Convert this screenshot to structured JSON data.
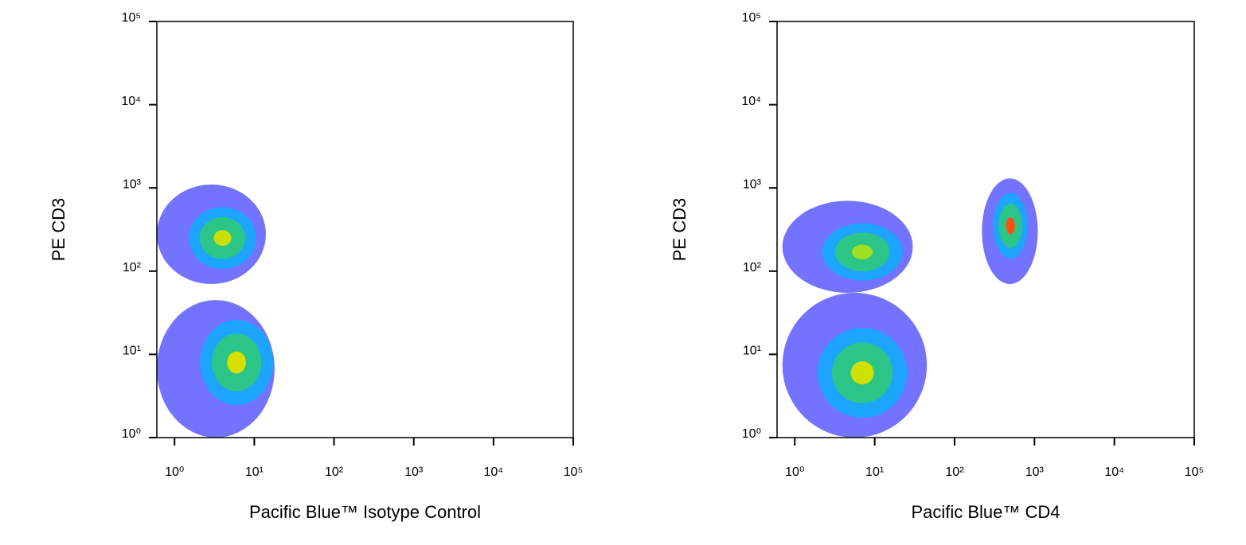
{
  "chart_data": [
    {
      "type": "density",
      "x_label": "Pacific Blue™ Isotype Control",
      "y_label": "PE CD3",
      "x_scale": "log",
      "y_scale": "log",
      "xlim": [
        0.6,
        100000
      ],
      "ylim": [
        1,
        100000
      ],
      "xticks": [
        {
          "value": 1,
          "label": "10⁰"
        },
        {
          "value": 10,
          "label": "10¹"
        },
        {
          "value": 100,
          "label": "10²"
        },
        {
          "value": 1000,
          "label": "10³"
        },
        {
          "value": 10000,
          "label": "10⁴"
        },
        {
          "value": 100000,
          "label": "10⁵"
        }
      ],
      "yticks": [
        {
          "value": 1,
          "label": "10⁰"
        },
        {
          "value": 10,
          "label": "10¹"
        },
        {
          "value": 100,
          "label": "10²"
        },
        {
          "value": 1000,
          "label": "10³"
        },
        {
          "value": 10000,
          "label": "10⁴"
        },
        {
          "value": 100000,
          "label": "10⁵"
        }
      ],
      "density_colors": [
        "#0000ff",
        "#00b4ff",
        "#30d060"
      ],
      "clusters": [
        {
          "x": 4,
          "y": 250,
          "x_range": [
            0.6,
            14
          ],
          "y_range": [
            70,
            1100
          ],
          "peak_color": "#c8e000"
        },
        {
          "x": 6,
          "y": 8,
          "x_range": [
            0.6,
            18
          ],
          "y_range": [
            1,
            45
          ],
          "peak_color": "#d8e000"
        }
      ]
    },
    {
      "type": "density",
      "x_label": "Pacific Blue™ CD4",
      "y_label": "PE CD3",
      "x_scale": "log",
      "y_scale": "log",
      "xlim": [
        0.6,
        100000
      ],
      "ylim": [
        1,
        100000
      ],
      "xticks": [
        {
          "value": 1,
          "label": "10⁰"
        },
        {
          "value": 10,
          "label": "10¹"
        },
        {
          "value": 100,
          "label": "10²"
        },
        {
          "value": 1000,
          "label": "10³"
        },
        {
          "value": 10000,
          "label": "10⁴"
        },
        {
          "value": 100000,
          "label": "10⁵"
        }
      ],
      "yticks": [
        {
          "value": 1,
          "label": "10⁰"
        },
        {
          "value": 10,
          "label": "10¹"
        },
        {
          "value": 100,
          "label": "10²"
        },
        {
          "value": 1000,
          "label": "10³"
        },
        {
          "value": 10000,
          "label": "10⁴"
        },
        {
          "value": 100000,
          "label": "10⁵"
        }
      ],
      "density_colors": [
        "#0000ff",
        "#00b4ff",
        "#30d060"
      ],
      "clusters": [
        {
          "x": 7,
          "y": 170,
          "x_range": [
            0.7,
            30
          ],
          "y_range": [
            55,
            700
          ],
          "peak_color": "#a0e020"
        },
        {
          "x": 500,
          "y": 350,
          "x_range": [
            220,
            1100
          ],
          "y_range": [
            70,
            1300
          ],
          "peak_color": "#ff5010"
        },
        {
          "x": 7,
          "y": 6,
          "x_range": [
            0.7,
            45
          ],
          "y_range": [
            1,
            55
          ],
          "peak_color": "#d0e000"
        }
      ]
    }
  ]
}
